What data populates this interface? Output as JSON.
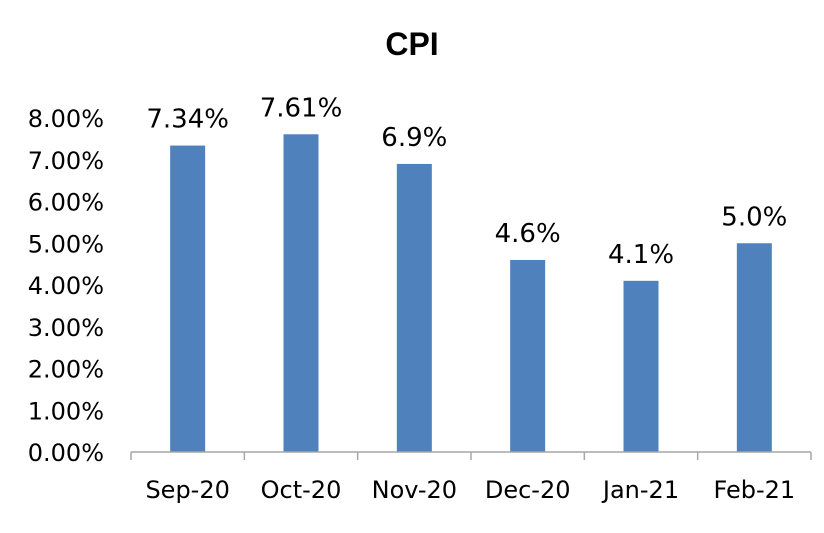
{
  "chart_data": {
    "type": "bar",
    "title": "CPI",
    "xlabel": "",
    "ylabel": "",
    "categories": [
      "Sep-20",
      "Oct-20",
      "Nov-20",
      "Dec-20",
      "Jan-21",
      "Feb-21"
    ],
    "values": [
      7.34,
      7.61,
      6.9,
      4.6,
      4.1,
      5.0
    ],
    "data_labels": [
      "7.34%",
      "7.61%",
      "6.9%",
      "4.6%",
      "4.1%",
      "5.0%"
    ],
    "ylim": [
      0,
      8
    ],
    "y_ticks": [
      0,
      1,
      2,
      3,
      4,
      5,
      6,
      7,
      8
    ],
    "y_tick_labels": [
      "0.00%",
      "1.00%",
      "2.00%",
      "3.00%",
      "4.00%",
      "5.00%",
      "6.00%",
      "7.00%",
      "8.00%"
    ],
    "grid": false,
    "legend": "none",
    "bar_color": "#4F81BD",
    "axis_color": "#A6A6A6"
  }
}
